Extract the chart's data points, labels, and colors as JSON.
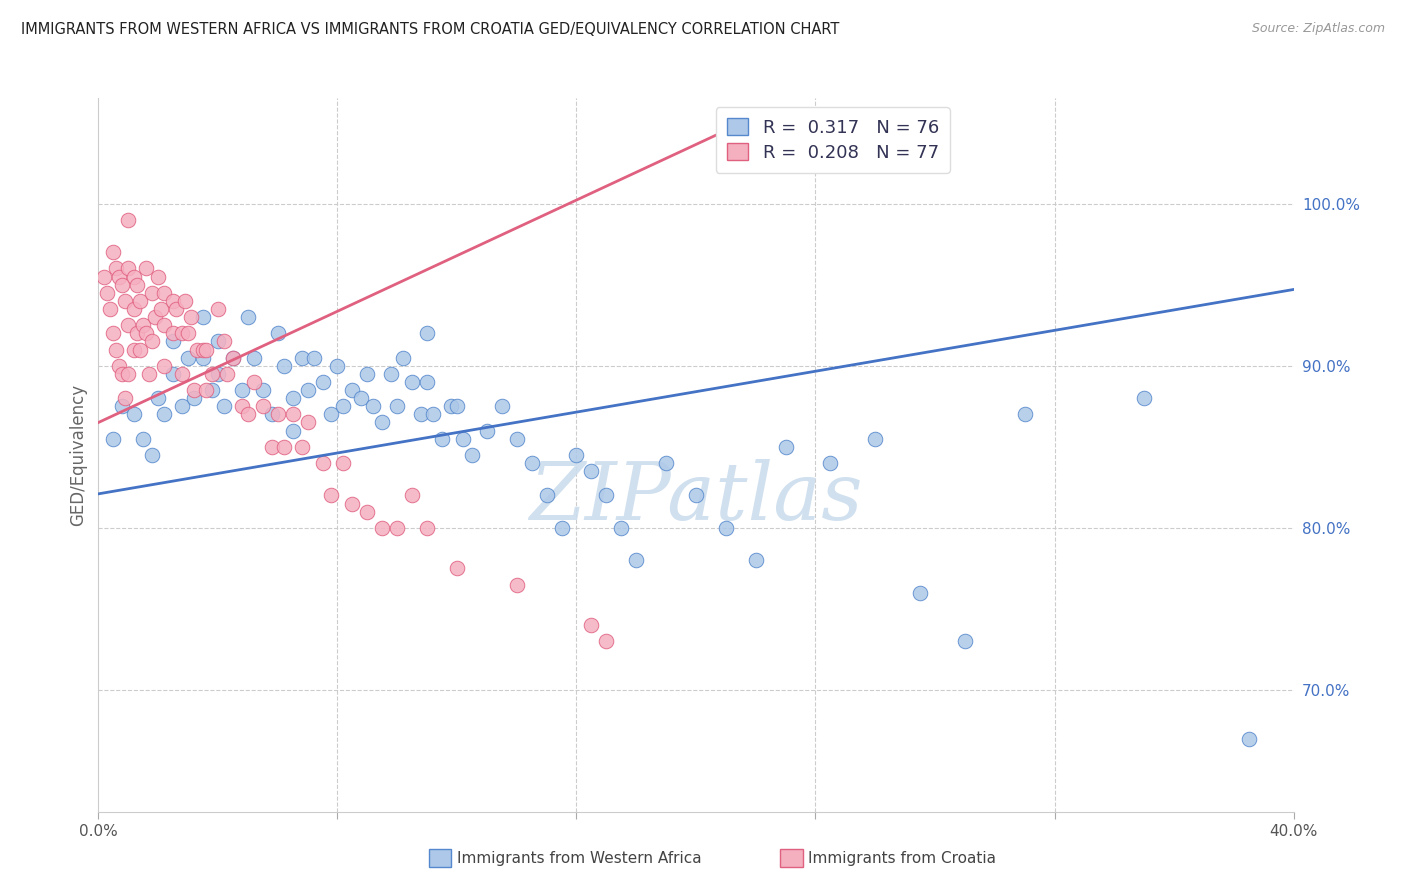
{
  "title": "IMMIGRANTS FROM WESTERN AFRICA VS IMMIGRANTS FROM CROATIA GED/EQUIVALENCY CORRELATION CHART",
  "source": "Source: ZipAtlas.com",
  "ylabel": "GED/Equivalency",
  "xmin": 0.0,
  "xmax": 0.4,
  "ymin": 0.625,
  "ymax": 1.065,
  "yticks": [
    0.7,
    0.8,
    0.9,
    1.0
  ],
  "ytick_labels": [
    "70.0%",
    "80.0%",
    "90.0%",
    "100.0%"
  ],
  "xtick_positions": [
    0.0,
    0.08,
    0.16,
    0.24,
    0.32,
    0.4
  ],
  "xtick_labels": [
    "0.0%",
    "",
    "",
    "",
    "",
    "40.0%"
  ],
  "blue_r": "0.317",
  "blue_n": "76",
  "pink_r": "0.208",
  "pink_n": "77",
  "blue_fill": "#adc8e8",
  "pink_fill": "#f5b0c0",
  "blue_edge": "#5588cc",
  "pink_edge": "#e06080",
  "blue_line": "#4472c4",
  "pink_line": "#e06080",
  "right_tick_color": "#4472c4",
  "watermark": "ZIPatlas",
  "watermark_color": "#ccdded",
  "blue_trend_x0": 0.0,
  "blue_trend_x1": 0.4,
  "blue_trend_y0": 0.821,
  "blue_trend_y1": 0.947,
  "pink_trend_x0": 0.0,
  "pink_trend_x1": 0.21,
  "pink_trend_y0": 0.865,
  "pink_trend_y1": 1.045,
  "blue_x": [
    0.005,
    0.008,
    0.012,
    0.015,
    0.018,
    0.02,
    0.022,
    0.025,
    0.025,
    0.028,
    0.03,
    0.032,
    0.035,
    0.035,
    0.038,
    0.04,
    0.04,
    0.042,
    0.045,
    0.048,
    0.05,
    0.052,
    0.055,
    0.058,
    0.06,
    0.062,
    0.065,
    0.065,
    0.068,
    0.07,
    0.072,
    0.075,
    0.078,
    0.08,
    0.082,
    0.085,
    0.088,
    0.09,
    0.092,
    0.095,
    0.098,
    0.1,
    0.102,
    0.105,
    0.108,
    0.11,
    0.11,
    0.112,
    0.115,
    0.118,
    0.12,
    0.122,
    0.125,
    0.13,
    0.135,
    0.14,
    0.145,
    0.15,
    0.155,
    0.16,
    0.165,
    0.17,
    0.175,
    0.18,
    0.19,
    0.2,
    0.21,
    0.22,
    0.23,
    0.245,
    0.26,
    0.275,
    0.29,
    0.31,
    0.35,
    0.385
  ],
  "blue_y": [
    0.855,
    0.875,
    0.87,
    0.855,
    0.845,
    0.88,
    0.87,
    0.915,
    0.895,
    0.875,
    0.905,
    0.88,
    0.93,
    0.905,
    0.885,
    0.915,
    0.895,
    0.875,
    0.905,
    0.885,
    0.93,
    0.905,
    0.885,
    0.87,
    0.92,
    0.9,
    0.88,
    0.86,
    0.905,
    0.885,
    0.905,
    0.89,
    0.87,
    0.9,
    0.875,
    0.885,
    0.88,
    0.895,
    0.875,
    0.865,
    0.895,
    0.875,
    0.905,
    0.89,
    0.87,
    0.92,
    0.89,
    0.87,
    0.855,
    0.875,
    0.875,
    0.855,
    0.845,
    0.86,
    0.875,
    0.855,
    0.84,
    0.82,
    0.8,
    0.845,
    0.835,
    0.82,
    0.8,
    0.78,
    0.84,
    0.82,
    0.8,
    0.78,
    0.85,
    0.84,
    0.855,
    0.76,
    0.73,
    0.87,
    0.88,
    0.67
  ],
  "pink_x": [
    0.002,
    0.003,
    0.004,
    0.005,
    0.005,
    0.006,
    0.006,
    0.007,
    0.007,
    0.008,
    0.008,
    0.009,
    0.009,
    0.01,
    0.01,
    0.01,
    0.01,
    0.012,
    0.012,
    0.012,
    0.013,
    0.013,
    0.014,
    0.014,
    0.015,
    0.016,
    0.016,
    0.017,
    0.018,
    0.018,
    0.019,
    0.02,
    0.021,
    0.022,
    0.022,
    0.022,
    0.025,
    0.025,
    0.026,
    0.028,
    0.028,
    0.029,
    0.03,
    0.031,
    0.032,
    0.033,
    0.035,
    0.036,
    0.036,
    0.038,
    0.04,
    0.042,
    0.043,
    0.045,
    0.048,
    0.05,
    0.052,
    0.055,
    0.058,
    0.06,
    0.062,
    0.065,
    0.068,
    0.07,
    0.075,
    0.078,
    0.082,
    0.085,
    0.09,
    0.095,
    0.1,
    0.105,
    0.11,
    0.12,
    0.14,
    0.165,
    0.17
  ],
  "pink_y": [
    0.955,
    0.945,
    0.935,
    0.97,
    0.92,
    0.96,
    0.91,
    0.955,
    0.9,
    0.95,
    0.895,
    0.94,
    0.88,
    0.99,
    0.96,
    0.925,
    0.895,
    0.955,
    0.935,
    0.91,
    0.95,
    0.92,
    0.94,
    0.91,
    0.925,
    0.96,
    0.92,
    0.895,
    0.945,
    0.915,
    0.93,
    0.955,
    0.935,
    0.945,
    0.925,
    0.9,
    0.94,
    0.92,
    0.935,
    0.92,
    0.895,
    0.94,
    0.92,
    0.93,
    0.885,
    0.91,
    0.91,
    0.91,
    0.885,
    0.895,
    0.935,
    0.915,
    0.895,
    0.905,
    0.875,
    0.87,
    0.89,
    0.875,
    0.85,
    0.87,
    0.85,
    0.87,
    0.85,
    0.865,
    0.84,
    0.82,
    0.84,
    0.815,
    0.81,
    0.8,
    0.8,
    0.82,
    0.8,
    0.775,
    0.765,
    0.74,
    0.73
  ]
}
